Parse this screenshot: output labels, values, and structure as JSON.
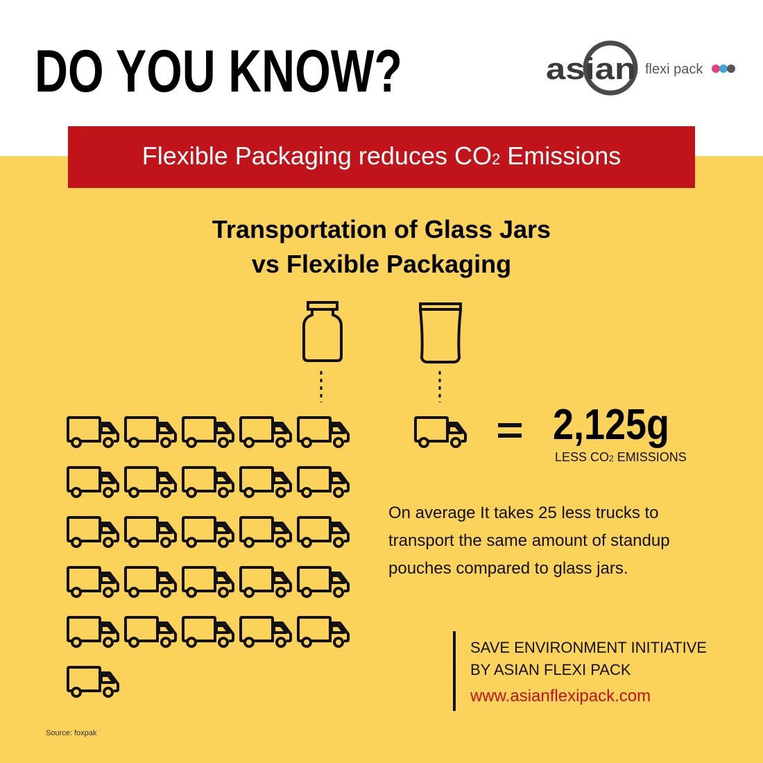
{
  "header": {
    "title": "DO YOU KNOW?",
    "logo_main": "asian",
    "logo_sub": "flexi pack"
  },
  "banner": {
    "before": "Flexible Packaging reduces CO",
    "sub": "2",
    "after": "Emissions"
  },
  "heading": {
    "line1": "Transportation of Glass Jars",
    "line2": "vs Flexible Packaging"
  },
  "comparison": {
    "glass_trucks": 26,
    "pouch_trucks": 1
  },
  "stat": {
    "value": "2,125g",
    "before": "LESS CO",
    "sub": "2",
    "after": "EMISSIONS"
  },
  "description": "On average It takes 25 less trucks to transport the same amount of standup pouches compared to glass jars.",
  "footer": {
    "line1": "SAVE ENVIRONMENT INITIATIVE",
    "line2": "BY ASIAN FLEXI PACK",
    "url": "www.asianflexipack.com"
  },
  "source": "Source: foxpak"
}
